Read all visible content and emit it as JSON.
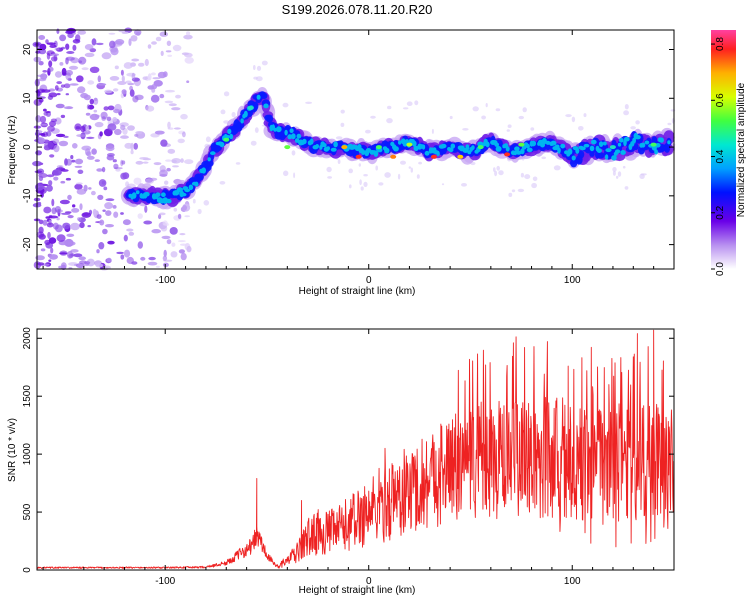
{
  "page_title": "S199.2026.078.11.20.R20",
  "chart_data": [
    {
      "type": "heatmap",
      "title": "S199.2026.078.11.20.R20",
      "xlabel": "Height of straight line (km)",
      "ylabel": "Frequency (Hz)",
      "xlim": [
        -163,
        150
      ],
      "ylim": [
        -25,
        24
      ],
      "x_ticks": [
        -100,
        0,
        100
      ],
      "x_tick_labels": [
        "-100",
        "0",
        "100"
      ],
      "y_ticks": [
        -20,
        -10,
        0,
        10,
        20
      ],
      "y_tick_labels": [
        "-20",
        "-10",
        "0",
        "10",
        "20"
      ],
      "colorbar": {
        "label": "Normalized spectral amplitude",
        "range": [
          0.0,
          0.85
        ],
        "ticks": [
          0.0,
          0.2,
          0.4,
          0.6,
          0.8
        ],
        "tick_labels": [
          "0.0",
          "0.2",
          "0.4",
          "0.6",
          "0.8"
        ]
      },
      "ridge": {
        "x": [
          -118,
          -108,
          -98,
          -90,
          -85,
          -80,
          -75,
          -70,
          -65,
          -60,
          -56,
          -52,
          -48,
          -44,
          -40,
          -35,
          -30,
          -20,
          -10,
          0,
          10,
          20,
          30,
          40,
          50,
          60,
          70,
          80,
          90,
          100,
          110,
          120,
          130,
          140,
          148
        ],
        "y": [
          -10,
          -10,
          -10.5,
          -9,
          -7,
          -4,
          0,
          2,
          4,
          7,
          9,
          11,
          4,
          3,
          3,
          2,
          0.5,
          0,
          -0.5,
          -1,
          0,
          1,
          -1,
          0,
          -1,
          1,
          -1,
          0,
          1,
          -2,
          0,
          -1,
          1,
          0,
          1
        ]
      },
      "scatter_region": {
        "x": [
          -163,
          -88
        ],
        "y": [
          -25,
          24
        ]
      }
    },
    {
      "type": "line",
      "xlabel": "Height of straight line (km)",
      "ylabel": "SNR (10 * v/v)",
      "xlim": [
        -163,
        150
      ],
      "ylim": [
        0,
        2080
      ],
      "x_ticks": [
        -100,
        0,
        100
      ],
      "x_tick_labels": [
        "-100",
        "0",
        "100"
      ],
      "y_ticks": [
        0,
        500,
        1000,
        1500,
        2000
      ],
      "y_tick_labels": [
        "0",
        "500",
        "1000",
        "1500",
        "2000"
      ],
      "series": [
        {
          "name": "SNR",
          "color": "#ee2222",
          "envelope_x": [
            -163,
            -100,
            -80,
            -70,
            -65,
            -60,
            -57,
            -55,
            -53,
            -50,
            -45,
            -40,
            -35,
            -30,
            -25,
            -20,
            -15,
            -10,
            -5,
            0,
            5,
            10,
            20,
            30,
            40,
            60,
            80,
            100,
            120,
            140,
            150
          ],
          "envelope_y": [
            20,
            20,
            25,
            60,
            120,
            180,
            220,
            300,
            240,
            120,
            30,
            80,
            150,
            280,
            330,
            320,
            350,
            400,
            450,
            500,
            560,
            600,
            680,
            800,
            880,
            940,
            970,
            960,
            930,
            960,
            900
          ],
          "spikes": [
            {
              "x": -55,
              "y": 790
            },
            {
              "x": -33,
              "y": 600
            },
            {
              "x": -2,
              "y": 720
            },
            {
              "x": 8,
              "y": 1050
            },
            {
              "x": 98,
              "y": 1760
            },
            {
              "x": 118,
              "y": 1600
            },
            {
              "x": 130,
              "y": 1840
            },
            {
              "x": 132,
              "y": 2040
            },
            {
              "x": 140,
              "y": 2070
            }
          ]
        }
      ]
    }
  ]
}
